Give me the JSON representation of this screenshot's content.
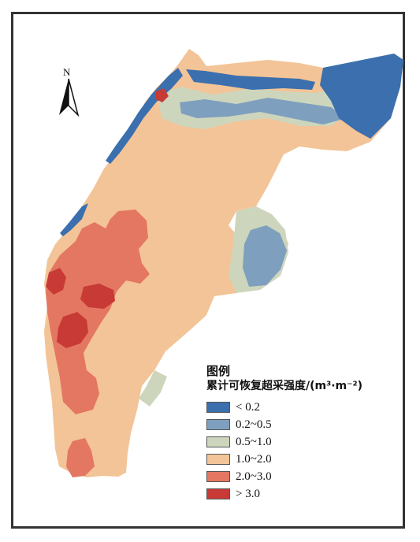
{
  "north_label": "N",
  "legend": {
    "title": "图例",
    "subtitle": "累计可恢复超采强度/(m³·m⁻²)",
    "items": [
      {
        "label": "< 0.2",
        "color": "#3b6fae"
      },
      {
        "label": "0.2~0.5",
        "color": "#7f9fbf"
      },
      {
        "label": "0.5~1.0",
        "color": "#cdd6bc"
      },
      {
        "label": "1.0~2.0",
        "color": "#f3c497"
      },
      {
        "label": "2.0~3.0",
        "color": "#e47761"
      },
      {
        "label": "> 3.0",
        "color": "#c83a36"
      }
    ]
  }
}
